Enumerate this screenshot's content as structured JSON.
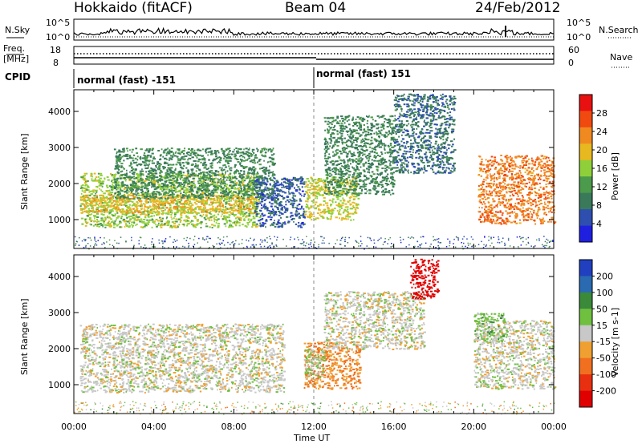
{
  "header": {
    "station": "Hokkaido (fitACF)",
    "beam": "Beam 04",
    "date": "24/Feb/2012"
  },
  "noise_panel": {
    "left_label": "N.Sky",
    "right_label": "N.Search",
    "left_ticks": [
      "10^5",
      "10^0"
    ],
    "right_ticks": [
      "10^5",
      "10^0"
    ]
  },
  "freq_panel": {
    "left_label_1": "Freq.",
    "left_label_2": "[MHz]",
    "right_label": "Nave",
    "left_ticks": [
      "18",
      "8"
    ],
    "right_ticks": [
      "60",
      "0"
    ]
  },
  "cpid_panel": {
    "label": "CPID",
    "modes": [
      {
        "text": "normal (fast) -151"
      },
      {
        "text": "normal (fast) 151"
      }
    ]
  },
  "power_panel": {
    "ylabel": "Slant Range [km]",
    "yticks": [
      "4000",
      "3000",
      "2000",
      "1000"
    ],
    "colorbar_label": "Power [dB]",
    "colorbar_ticks": [
      "28",
      "24",
      "20",
      "16",
      "12",
      "8",
      "4"
    ],
    "colors": [
      "#1f1fe0",
      "#2e4fb0",
      "#3a7a5a",
      "#4c9a4c",
      "#8fd03a",
      "#e8b820",
      "#f08a20",
      "#f04a10",
      "#e81010"
    ]
  },
  "velocity_panel": {
    "ylabel": "Slant Range [km]",
    "yticks": [
      "4000",
      "3000",
      "2000",
      "1000"
    ],
    "colorbar_label": "Velocity [m s-1]",
    "colorbar_ticks": [
      "200",
      "100",
      "50",
      "15",
      "-15",
      "-50",
      "-100",
      "-200"
    ],
    "colors": [
      "#2040c0",
      "#2a6ab0",
      "#3a8a3a",
      "#70c040",
      "#c8c8c8",
      "#f0a030",
      "#f07020",
      "#e83010",
      "#e00000"
    ]
  },
  "xaxis": {
    "label": "Time UT",
    "ticks": [
      "00:00",
      "04:00",
      "08:00",
      "12:00",
      "16:00",
      "20:00",
      "00:00"
    ]
  },
  "chart_data": [
    {
      "type": "heatmap",
      "title": "Power",
      "xlabel": "Time UT",
      "ylabel": "Slant Range [km]",
      "xlim": [
        0,
        24
      ],
      "ylim": [
        200,
        4600
      ],
      "colorbar": {
        "label": "Power [dB]",
        "range": [
          0,
          32
        ]
      },
      "regions": [
        {
          "t0": 0.3,
          "t1": 9.3,
          "r0": 800,
          "r1": 2300,
          "level": 16
        },
        {
          "t0": 0.3,
          "t1": 9.0,
          "r0": 1200,
          "r1": 1700,
          "level": 20
        },
        {
          "t0": 2.0,
          "t1": 10.0,
          "r0": 1600,
          "r1": 3000,
          "level": 10
        },
        {
          "t0": 9.0,
          "t1": 11.5,
          "r0": 800,
          "r1": 2200,
          "level": 6
        },
        {
          "t0": 11.5,
          "t1": 14.2,
          "r0": 1000,
          "r1": 2200,
          "level": 18
        },
        {
          "t0": 12.5,
          "t1": 16.0,
          "r0": 1700,
          "r1": 3900,
          "level": 10
        },
        {
          "t0": 16.0,
          "t1": 19.0,
          "r0": 2300,
          "r1": 4500,
          "level": 8
        },
        {
          "t0": 20.2,
          "t1": 24.0,
          "r0": 900,
          "r1": 2800,
          "level": 24
        }
      ]
    },
    {
      "type": "heatmap",
      "title": "Velocity",
      "xlabel": "Time UT",
      "ylabel": "Slant Range [km]",
      "xlim": [
        0,
        24
      ],
      "ylim": [
        200,
        4600
      ],
      "colorbar": {
        "label": "Velocity [m s-1]",
        "range": [
          -200,
          200
        ]
      },
      "regions": [
        {
          "t0": 0.3,
          "t1": 10.5,
          "r0": 800,
          "r1": 2700,
          "level": 0
        },
        {
          "t0": 11.5,
          "t1": 14.3,
          "r0": 900,
          "r1": 2200,
          "level": -70
        },
        {
          "t0": 11.5,
          "t1": 12.5,
          "r0": 1200,
          "r1": 2000,
          "level": 30
        },
        {
          "t0": 12.5,
          "t1": 17.5,
          "r0": 2000,
          "r1": 3600,
          "level": 0
        },
        {
          "t0": 16.8,
          "t1": 18.2,
          "r0": 3400,
          "r1": 4500,
          "level": -200
        },
        {
          "t0": 20.0,
          "t1": 24.0,
          "r0": 900,
          "r1": 2800,
          "level": 0
        },
        {
          "t0": 20.0,
          "t1": 21.5,
          "r0": 2200,
          "r1": 3000,
          "level": 40
        }
      ]
    }
  ]
}
